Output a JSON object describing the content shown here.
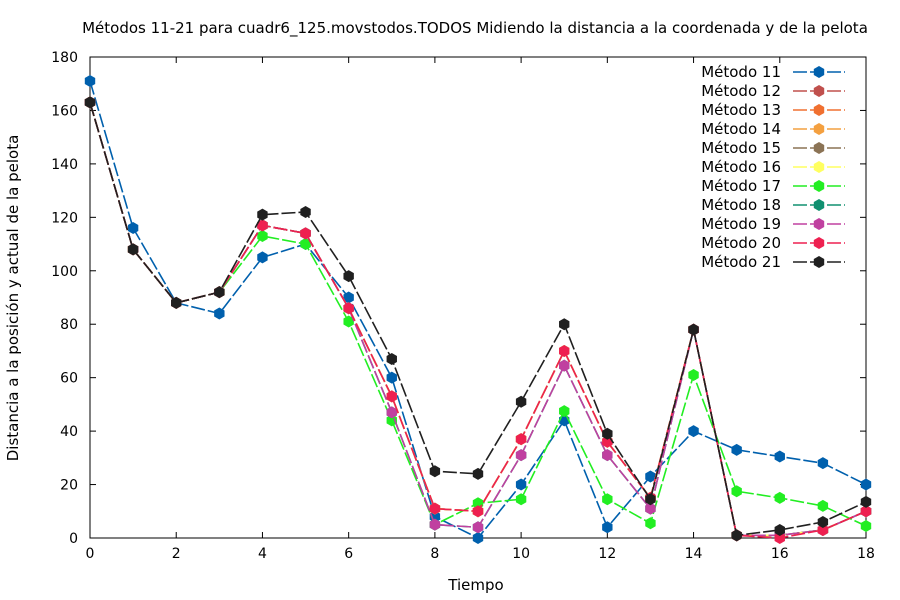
{
  "chart_data": {
    "type": "line",
    "title": "Métodos 11-21 para cuadr6_125.movstodos.TODOS Midiendo la distancia a la coordenada y de la pelota",
    "xlabel": "Tiempo",
    "ylabel": "Distancia a la posición y actual de la pelota",
    "xlim": [
      0,
      18
    ],
    "ylim": [
      0,
      180
    ],
    "xticks": [
      "0",
      "2",
      "4",
      "6",
      "8",
      "10",
      "12",
      "14",
      "16",
      "18"
    ],
    "yticks": [
      "0",
      "20",
      "40",
      "60",
      "80",
      "100",
      "120",
      "140",
      "160",
      "180"
    ],
    "legend_position": "top-right",
    "grid": false,
    "x": [
      0,
      1,
      2,
      3,
      4,
      5,
      6,
      7,
      8,
      9,
      10,
      11,
      12,
      13,
      14,
      15,
      16,
      17,
      18
    ],
    "series": [
      {
        "name": "Método 11",
        "color": "#0060ad",
        "values": [
          171,
          116,
          88,
          84,
          105,
          110,
          90,
          60,
          8,
          0,
          20,
          44,
          4,
          23,
          40,
          33,
          30.5,
          28,
          20
        ]
      },
      {
        "name": "Método 12",
        "color": "#c0504d",
        "values": [
          163,
          108,
          88,
          92,
          117,
          114,
          86,
          53,
          11,
          10,
          37,
          70,
          36,
          15,
          78,
          1,
          1,
          3,
          10
        ]
      },
      {
        "name": "Método 13",
        "color": "#f07030",
        "values": [
          163,
          108,
          88,
          92,
          117,
          114,
          86,
          53,
          11,
          10,
          37,
          70,
          36,
          15,
          78,
          1,
          1,
          3,
          10
        ]
      },
      {
        "name": "Método 14",
        "color": "#f4a040",
        "values": [
          163,
          108,
          88,
          92,
          117,
          114,
          86,
          53,
          11,
          10,
          37,
          70,
          36,
          15,
          78,
          1,
          1,
          3,
          10
        ]
      },
      {
        "name": "Método 15",
        "color": "#8b7355",
        "values": [
          163,
          108,
          88,
          92,
          117,
          114,
          86,
          53,
          11,
          10,
          37,
          70,
          36,
          15,
          78,
          1,
          1,
          3,
          10
        ]
      },
      {
        "name": "Método 16",
        "color": "#ffff60",
        "values": [
          163,
          108,
          88,
          92,
          117,
          114,
          86,
          53,
          11,
          10,
          37,
          70,
          36,
          15,
          78,
          1,
          1,
          3,
          10
        ]
      },
      {
        "name": "Método 17",
        "color": "#22ee22",
        "values": [
          163,
          108,
          88,
          92,
          113,
          110,
          81,
          44,
          5,
          13,
          14.5,
          47.5,
          14.5,
          5.5,
          61,
          17.5,
          15,
          12,
          4.5
        ]
      },
      {
        "name": "Método 18",
        "color": "#109070",
        "values": [
          163,
          108,
          88,
          92,
          117,
          114,
          86,
          47,
          5,
          4,
          31,
          64.5,
          31,
          11,
          78,
          1,
          1,
          3,
          10
        ]
      },
      {
        "name": "Método 19",
        "color": "#c040a0",
        "values": [
          163,
          108,
          88,
          92,
          117,
          114,
          86,
          47,
          5,
          4,
          31,
          64.5,
          31,
          11,
          78,
          1,
          1,
          3,
          10
        ]
      },
      {
        "name": "Método 20",
        "color": "#ee2050",
        "values": [
          163,
          108,
          88,
          92,
          117,
          114,
          86,
          53,
          11,
          10,
          37,
          70,
          36,
          15,
          78,
          1,
          0,
          3,
          10
        ]
      },
      {
        "name": "Método 21",
        "color": "#202020",
        "values": [
          163,
          108,
          88,
          92,
          121,
          122,
          98,
          67,
          25,
          24,
          51,
          80,
          39,
          14.5,
          78,
          1,
          3,
          6,
          13.5
        ]
      }
    ]
  }
}
